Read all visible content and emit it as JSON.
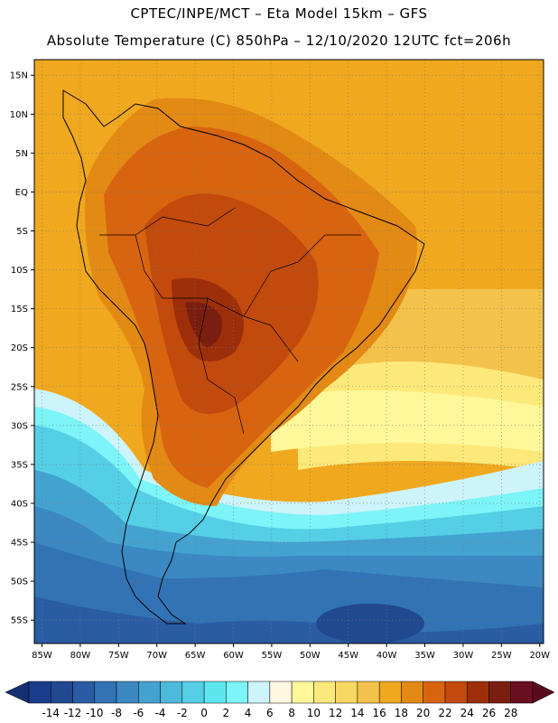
{
  "header": {
    "line1": "CPTEC/INPE/MCT –  Eta Model 15km – GFS",
    "line2": "Absolute Temperature (C) 850hPa – 12/10/2020 12UTC fct=206h"
  },
  "map": {
    "region": "South America",
    "lon_range": [
      -86,
      -19.5
    ],
    "lat_range": [
      -58,
      17
    ],
    "lat_labels": [
      "15N",
      "10N",
      "5N",
      "EQ",
      "5S",
      "10S",
      "15S",
      "20S",
      "25S",
      "30S",
      "35S",
      "40S",
      "45S",
      "50S",
      "55S"
    ],
    "lat_values": [
      15,
      10,
      5,
      0,
      -5,
      -10,
      -15,
      -20,
      -25,
      -30,
      -35,
      -40,
      -45,
      -50,
      -55
    ],
    "lon_labels": [
      "85W",
      "80W",
      "75W",
      "70W",
      "65W",
      "60W",
      "55W",
      "50W",
      "45W",
      "40W",
      "35W",
      "30W",
      "25W",
      "20W"
    ],
    "lon_values": [
      -85,
      -80,
      -75,
      -70,
      -65,
      -60,
      -55,
      -50,
      -45,
      -40,
      -35,
      -30,
      -25,
      -20
    ],
    "gridlines": "dotted"
  },
  "colorbar": {
    "labels": [
      "-14",
      "-12",
      "-10",
      "-8",
      "-6",
      "-4",
      "-2",
      "0",
      "2",
      "4",
      "6",
      "8",
      "10",
      "12",
      "14",
      "16",
      "18",
      "20",
      "22",
      "24",
      "26",
      "28"
    ],
    "colors": [
      "#1a3c8c",
      "#21498f",
      "#2a5ca4",
      "#3173b4",
      "#3b88c2",
      "#44a2d1",
      "#4dbadc",
      "#55cfe6",
      "#5ee6ee",
      "#7cf4f8",
      "#cdf3fb",
      "#fff7e0",
      "#fff79a",
      "#fde97a",
      "#f8d862",
      "#f3c24a",
      "#f0a81e",
      "#e38a14",
      "#d86410",
      "#c24a0c",
      "#9c2f0a",
      "#7a1e10",
      "#6a0e22"
    ],
    "left_arrow_color": "#162e72",
    "right_arrow_color": "#5a0a1e"
  }
}
